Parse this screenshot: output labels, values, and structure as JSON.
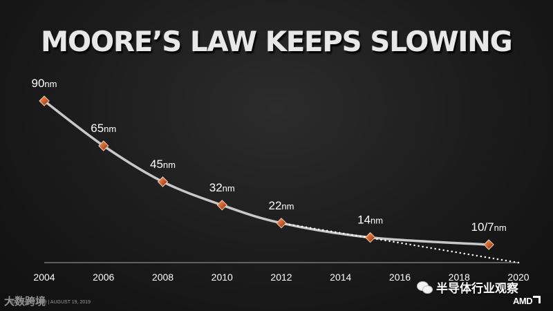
{
  "chart_data": {
    "type": "line",
    "title": "MOORE’S LAW KEEPS SLOWING",
    "x_ticks": [
      "2004",
      "2006",
      "2008",
      "2010",
      "2012",
      "2014",
      "2016",
      "2018",
      "2020"
    ],
    "xlim": [
      2004,
      2020
    ],
    "ylim": [
      0,
      100
    ],
    "grid": false,
    "series": [
      {
        "points": [
          {
            "x": 2004,
            "y": 90,
            "label": "90nm"
          },
          {
            "x": 2006,
            "y": 65,
            "label": "65nm"
          },
          {
            "x": 2008,
            "y": 45,
            "label": "45nm"
          },
          {
            "x": 2010,
            "y": 32,
            "label": "32nm"
          },
          {
            "x": 2012,
            "y": 22,
            "label": "22nm"
          },
          {
            "x": 2015,
            "y": 14,
            "label": "14nm"
          },
          {
            "x": 2019,
            "y": 10,
            "label": "10/7nm"
          }
        ],
        "color": "#c8c8c8",
        "style": "solid"
      },
      {
        "points": [
          {
            "x": 2012,
            "y": 22
          },
          {
            "x": 2020,
            "y": 0
          }
        ],
        "color": "#ffffff",
        "style": "dotted"
      }
    ],
    "marker_color": "#c85a2a"
  },
  "footer": {
    "brand": "大数跨境",
    "event_date": "HOT CHIPS 2019 | AUGUST 19, 2019"
  },
  "watermark": {
    "text": "半导体行业观察",
    "icon": "wechat-icon"
  },
  "logo": {
    "text": "AMD"
  }
}
